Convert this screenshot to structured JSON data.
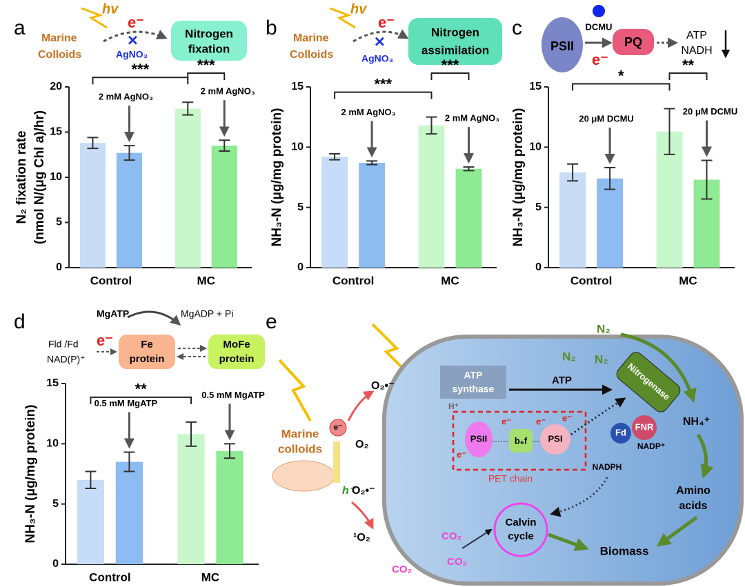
{
  "chart_data": [
    {
      "type": "bar",
      "panel": "a",
      "ylabel": [
        "N₂ fixation rate",
        "(nmol N/(μg Chl a)/hr)"
      ],
      "categories": [
        "Control",
        "MC"
      ],
      "ylim": [
        0,
        20
      ],
      "yticks": [
        0,
        5,
        10,
        15,
        20
      ],
      "treatment_label": "2 mM AgNO₃",
      "significance": [
        "***",
        "***"
      ],
      "series": [
        {
          "colors": [
            "#c6dcf7",
            "#c9f7cc"
          ],
          "values": [
            13.8,
            17.6
          ],
          "errors": [
            0.6,
            0.7
          ]
        },
        {
          "colors": [
            "#8cbcf2",
            "#8eea93"
          ],
          "values": [
            12.7,
            13.5
          ],
          "errors": [
            0.8,
            0.6
          ]
        }
      ]
    },
    {
      "type": "bar",
      "panel": "b",
      "ylabel": [
        "NH₃-N (μg/mg protein)"
      ],
      "categories": [
        "Control",
        "MC"
      ],
      "ylim": [
        0,
        15
      ],
      "yticks": [
        0,
        5,
        10,
        15
      ],
      "treatment_label": "2 mM AgNO₃",
      "significance": [
        "***",
        "***"
      ],
      "series": [
        {
          "colors": [
            "#c6dcf7",
            "#c9f7cc"
          ],
          "values": [
            9.2,
            11.8
          ],
          "errors": [
            0.25,
            0.7
          ]
        },
        {
          "colors": [
            "#8cbcf2",
            "#8eea93"
          ],
          "values": [
            8.7,
            8.2
          ],
          "errors": [
            0.15,
            0.15
          ]
        }
      ]
    },
    {
      "type": "bar",
      "panel": "c",
      "ylabel": [
        "NH₃-N (μg/mg protein)"
      ],
      "categories": [
        "Control",
        "MC"
      ],
      "ylim": [
        0,
        15
      ],
      "yticks": [
        0,
        5,
        10,
        15
      ],
      "treatment_label": "20 μM DCMU",
      "significance": [
        "*",
        "**"
      ],
      "series": [
        {
          "colors": [
            "#c6dcf7",
            "#c9f7cc"
          ],
          "values": [
            7.9,
            11.3
          ],
          "errors": [
            0.7,
            1.9
          ]
        },
        {
          "colors": [
            "#8cbcf2",
            "#8eea93"
          ],
          "values": [
            7.4,
            7.3
          ],
          "errors": [
            0.9,
            1.6
          ]
        }
      ]
    },
    {
      "type": "bar",
      "panel": "d",
      "ylabel": [
        "NH₃-N (μg/mg protein)"
      ],
      "categories": [
        "Control",
        "MC"
      ],
      "ylim": [
        0,
        15
      ],
      "yticks": [
        0,
        5,
        10,
        15
      ],
      "treatment_label": "0.5 mM MgATP",
      "significance": [
        "**"
      ],
      "series": [
        {
          "colors": [
            "#c6dcf7",
            "#c9f7cc"
          ],
          "values": [
            7.0,
            10.8
          ],
          "errors": [
            0.7,
            1.0
          ]
        },
        {
          "colors": [
            "#8cbcf2",
            "#8eea93"
          ],
          "values": [
            8.5,
            9.4
          ],
          "errors": [
            0.8,
            0.6
          ]
        }
      ]
    }
  ],
  "diagrams": {
    "a": {
      "hv": "hv",
      "e": "e⁻",
      "marine": "Marine",
      "colloids": "Colloids",
      "inhibitor": "AgNO₃",
      "box": [
        "Nitrogen",
        "fixation"
      ]
    },
    "b": {
      "hv": "hv",
      "e": "e⁻",
      "marine": "Marine",
      "colloids": "Colloids",
      "inhibitor": "AgNO₃",
      "box": [
        "Nitrogen",
        "assimilation"
      ]
    },
    "c": {
      "inhibitor": "DCMU",
      "psii": "PSII",
      "pq": "PQ",
      "e": "e⁻",
      "atp": "ATP",
      "nadh": "NADH"
    },
    "d": {
      "mgatp": "MgATP",
      "mgadp": "MgADP + Pi",
      "fld": "Fld /Fd",
      "nadp": "NAD(P)⁺",
      "e": "e⁻",
      "fe": [
        "Fe",
        "protein"
      ],
      "mofe": [
        "MoFe",
        "protein"
      ]
    },
    "e": {
      "panel": "e",
      "e_circle": "e⁻",
      "marine": [
        "Marine",
        "colloids"
      ],
      "o2r1": "O₂•⁻",
      "o2": "O₂",
      "o2r2": "O₂•⁻",
      "singlet": "¹O₂",
      "h": "h⁺",
      "atp_synthase": [
        "ATP",
        "synthase"
      ],
      "hplus": "H⁺",
      "atp": "ATP",
      "nitrogenase": "Nitrogenase",
      "n2": [
        "N₂",
        "N₂",
        "N₂"
      ],
      "nh4": "NH₄⁺",
      "psii": "PSII",
      "b6f": "b₆f",
      "psi": "PSI",
      "e_labels": [
        "e⁻",
        "e⁻",
        "e⁻",
        "e⁻"
      ],
      "fd": "Fd",
      "fnr": "FNR",
      "nadp": "NADP⁺",
      "nadph": "NADPH",
      "pet": "PET chain",
      "calvin": [
        "Calvin",
        "cycle"
      ],
      "amino": [
        "Amino",
        "acids"
      ],
      "biomass": "Biomass",
      "co2": [
        "CO₂",
        "CO₂",
        "CO₂"
      ]
    }
  }
}
